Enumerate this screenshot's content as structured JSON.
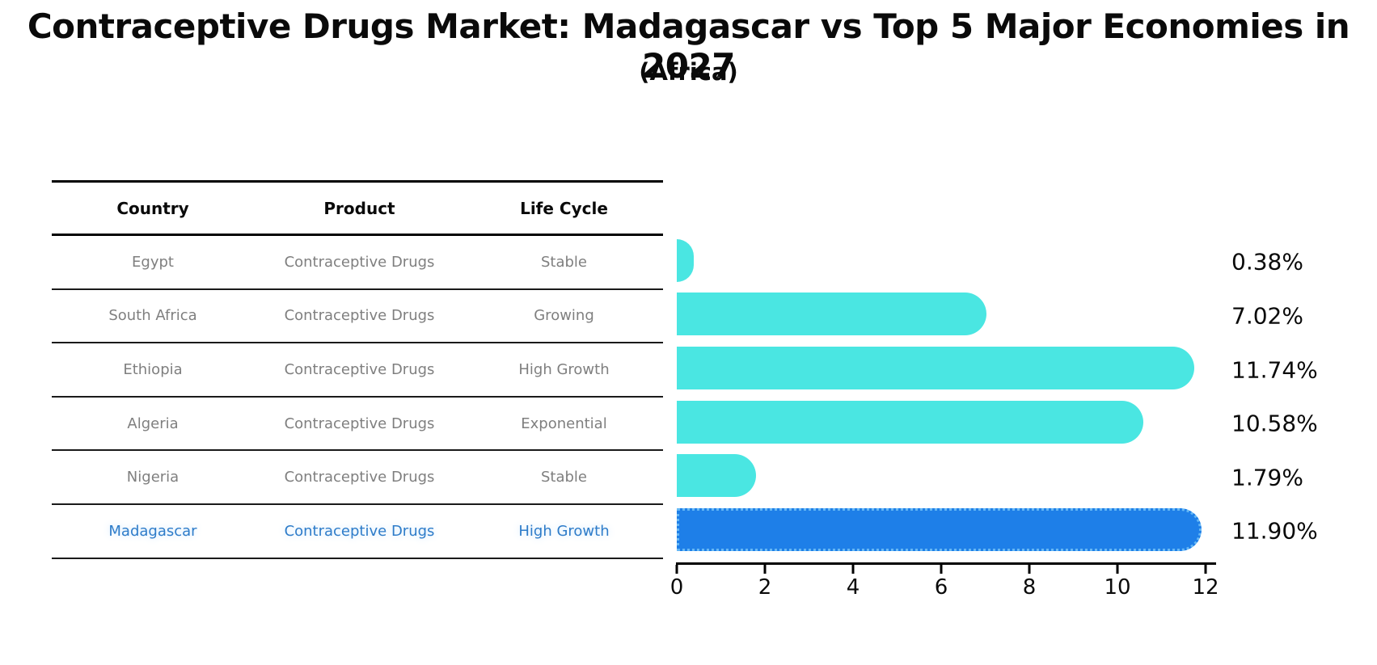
{
  "title": "Contraceptive Drugs Market: Madagascar vs Top 5 Major Economies in 2027",
  "subtitle": "(Africa)",
  "table": {
    "headers": [
      "Country",
      "Product",
      "Life Cycle"
    ],
    "rows": [
      {
        "country": "Egypt",
        "product": "Contraceptive Drugs",
        "life_cycle": "Stable",
        "highlight": false
      },
      {
        "country": "South Africa",
        "product": "Contraceptive Drugs",
        "life_cycle": "Growing",
        "highlight": false
      },
      {
        "country": "Ethiopia",
        "product": "Contraceptive Drugs",
        "life_cycle": "High Growth",
        "highlight": false
      },
      {
        "country": "Algeria",
        "product": "Contraceptive Drugs",
        "life_cycle": "Exponential",
        "highlight": false
      },
      {
        "country": "Nigeria",
        "product": "Contraceptive Drugs",
        "life_cycle": "Stable",
        "highlight": false
      },
      {
        "country": "Madagascar",
        "product": "Contraceptive Drugs",
        "life_cycle": "High Growth",
        "highlight": true
      }
    ]
  },
  "chart_data": {
    "type": "bar",
    "orientation": "horizontal",
    "title": "Contraceptive Drugs Market: Madagascar vs Top 5 Major Economies in 2027",
    "subtitle": "(Africa)",
    "categories": [
      "Egypt",
      "South Africa",
      "Ethiopia",
      "Algeria",
      "Nigeria",
      "Madagascar"
    ],
    "values": [
      0.38,
      7.02,
      11.74,
      10.58,
      1.79,
      11.9
    ],
    "value_labels": [
      "0.38%",
      "7.02%",
      "11.74%",
      "10.58%",
      "1.79%",
      "11.90%"
    ],
    "x_ticks": [
      0,
      2,
      4,
      6,
      8,
      10,
      12
    ],
    "xlim": [
      0,
      12.3
    ],
    "grid": false,
    "legend": false,
    "xlabel": "",
    "ylabel": "",
    "bar_color": "#4AE6E2",
    "highlight_index": 5,
    "highlight_color": "#1E7FE8",
    "highlight_border_color": "#66B8F5"
  },
  "colors": {
    "text_primary": "#0a0a0a",
    "text_muted": "#7f7f7f",
    "highlight_text": "#2E7CC9",
    "table_line": "#000000"
  }
}
